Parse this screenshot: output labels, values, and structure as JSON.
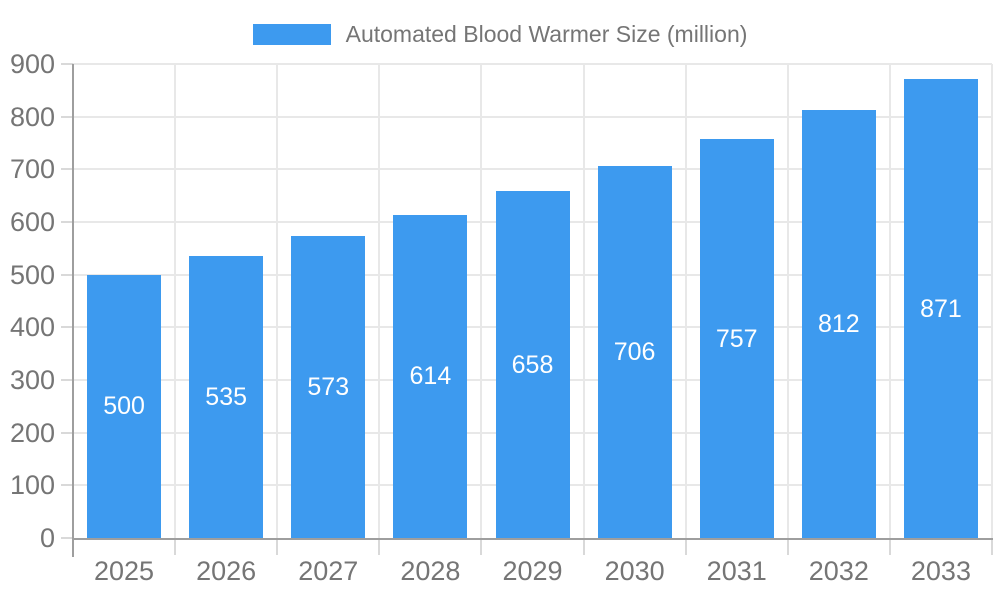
{
  "legend": {
    "label": "Automated Blood Warmer Size (million)"
  },
  "chart_data": {
    "type": "bar",
    "title": "Automated Blood Warmer Size (million)",
    "categories": [
      "2025",
      "2026",
      "2027",
      "2028",
      "2029",
      "2030",
      "2031",
      "2032",
      "2033"
    ],
    "values": [
      500,
      535,
      573,
      614,
      658,
      706,
      757,
      812,
      871
    ],
    "xlabel": "",
    "ylabel": "",
    "ylim": [
      0,
      900
    ],
    "ytick_step": 100,
    "grid": true,
    "legend_position": "top-center",
    "data_labels": "inside-center",
    "colors": {
      "bar": "#3D9AEF",
      "bar_label": "#ffffff",
      "axis_text": "#757575",
      "axis_line": "#9e9e9e",
      "gridline": "#e8e8e8",
      "tick": "#d9d9d9",
      "background": "#ffffff"
    }
  }
}
